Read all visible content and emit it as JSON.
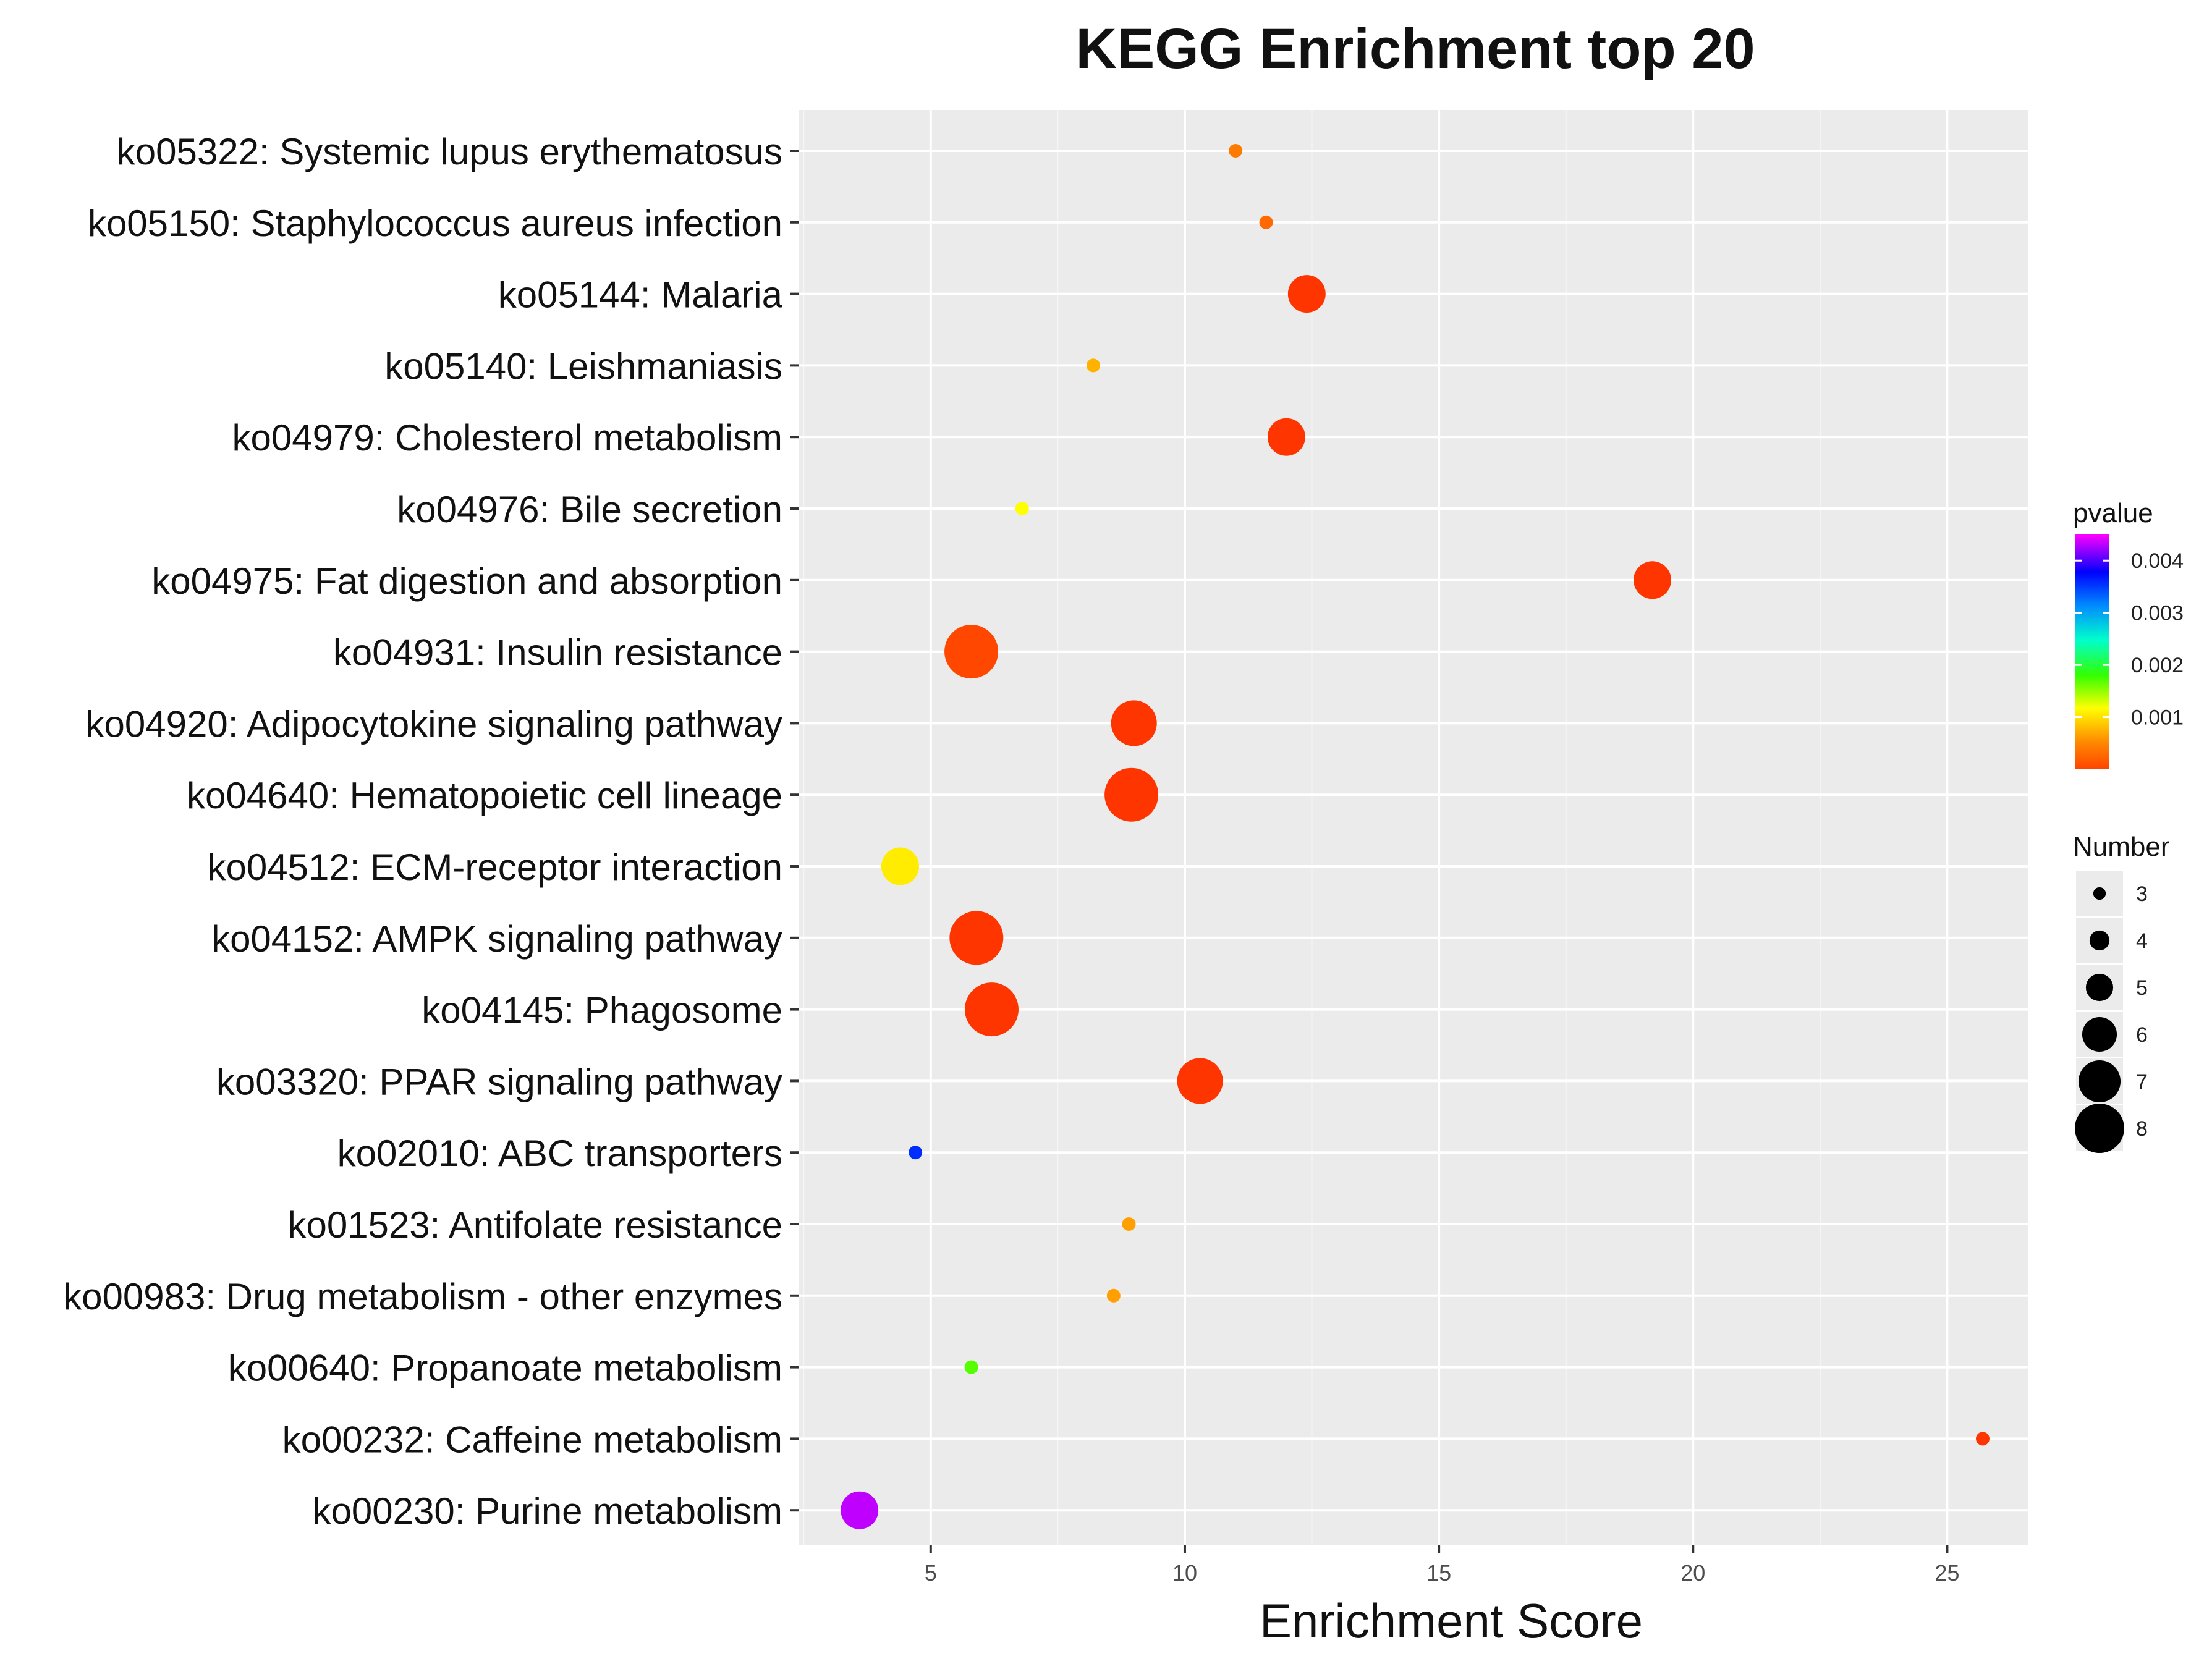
{
  "chart_data": {
    "type": "scatter",
    "title": "KEGG Enrichment top 20",
    "xlabel": "Enrichment Score",
    "ylabel": "",
    "xlim": [
      2.4,
      26.6
    ],
    "x_ticks": [
      "5",
      "10",
      "15",
      "20",
      "25"
    ],
    "x_tick_values": [
      5,
      10,
      15,
      20,
      25
    ],
    "grid": true,
    "legend_position": "right",
    "categories": [
      "ko05322: Systemic lupus erythematosus",
      "ko05150: Staphylococcus aureus infection",
      "ko05144: Malaria",
      "ko05140: Leishmaniasis",
      "ko04979: Cholesterol metabolism",
      "ko04976: Bile secretion",
      "ko04975: Fat digestion and absorption",
      "ko04931: Insulin resistance",
      "ko04920: Adipocytokine signaling pathway",
      "ko04640: Hematopoietic cell lineage",
      "ko04512: ECM-receptor interaction",
      "ko04152: AMPK signaling pathway",
      "ko04145: Phagosome",
      "ko03320: PPAR signaling pathway",
      "ko02010: ABC transporters",
      "ko01523: Antifolate resistance",
      "ko00983: Drug metabolism - other enzymes",
      "ko00640: Propanoate metabolism",
      "ko00232: Caffeine metabolism",
      "ko00230: Purine metabolism"
    ],
    "points": [
      {
        "category": "ko05322: Systemic lupus erythematosus",
        "x": 11.0,
        "number": 3,
        "pvalue": 0.0005
      },
      {
        "category": "ko05150: Staphylococcus aureus infection",
        "x": 11.6,
        "number": 3,
        "pvalue": 0.0004
      },
      {
        "category": "ko05144: Malaria",
        "x": 12.4,
        "number": 6,
        "pvalue": 0.0001
      },
      {
        "category": "ko05140: Leishmaniasis",
        "x": 8.2,
        "number": 3,
        "pvalue": 0.0008
      },
      {
        "category": "ko04979: Cholesterol metabolism",
        "x": 12.0,
        "number": 6,
        "pvalue": 0.0001
      },
      {
        "category": "ko04976: Bile secretion",
        "x": 6.8,
        "number": 3,
        "pvalue": 0.0012
      },
      {
        "category": "ko04975: Fat digestion and absorption",
        "x": 19.2,
        "number": 6,
        "pvalue": 0.0001
      },
      {
        "category": "ko04931: Insulin resistance",
        "x": 5.8,
        "number": 8,
        "pvalue": 0.0002
      },
      {
        "category": "ko04920: Adipocytokine signaling pathway",
        "x": 9.0,
        "number": 7,
        "pvalue": 0.0001
      },
      {
        "category": "ko04640: Hematopoietic cell lineage",
        "x": 8.95,
        "number": 8,
        "pvalue": 0.0001
      },
      {
        "category": "ko04512: ECM-receptor interaction",
        "x": 4.4,
        "number": 6,
        "pvalue": 0.0011
      },
      {
        "category": "ko04152: AMPK signaling pathway",
        "x": 5.9,
        "number": 8,
        "pvalue": 0.0001
      },
      {
        "category": "ko04145: Phagosome",
        "x": 6.2,
        "number": 8,
        "pvalue": 0.0001
      },
      {
        "category": "ko03320: PPAR signaling pathway",
        "x": 10.3,
        "number": 7,
        "pvalue": 0.0001
      },
      {
        "category": "ko02010: ABC transporters",
        "x": 4.7,
        "number": 3,
        "pvalue": 0.0035
      },
      {
        "category": "ko01523: Antifolate resistance",
        "x": 8.9,
        "number": 3,
        "pvalue": 0.0007
      },
      {
        "category": "ko00983: Drug metabolism - other enzymes",
        "x": 8.6,
        "number": 3,
        "pvalue": 0.0007
      },
      {
        "category": "ko00640: Propanoate metabolism",
        "x": 5.8,
        "number": 3,
        "pvalue": 0.0017
      },
      {
        "category": "ko00232: Caffeine metabolism",
        "x": 25.7,
        "number": 3,
        "pvalue": 0.0001
      },
      {
        "category": "ko00230: Purine metabolism",
        "x": 3.6,
        "number": 6,
        "pvalue": 0.0043
      }
    ],
    "color_legend": {
      "title": "pvalue",
      "ticks": [
        "0.004",
        "0.003",
        "0.002",
        "0.001"
      ],
      "tick_values": [
        0.004,
        0.003,
        0.002,
        0.001
      ],
      "range": [
        0.0,
        0.0045
      ],
      "colors_low_to_high": [
        "#ff2400",
        "#ff8c00",
        "#ffff00",
        "#33ff00",
        "#00ffcc",
        "#0088ff",
        "#0000ff",
        "#ff00ff"
      ]
    },
    "size_legend": {
      "title": "Number",
      "labels": [
        "3",
        "4",
        "5",
        "6",
        "7",
        "8"
      ],
      "values": [
        3,
        4,
        5,
        6,
        7,
        8
      ]
    },
    "colors": {
      "panel_background": "#ebebeb",
      "grid_major": "#ffffff",
      "grid_minor": "#f5f5f5",
      "text": "#111111",
      "tick_text": "#4d4d4d"
    }
  }
}
